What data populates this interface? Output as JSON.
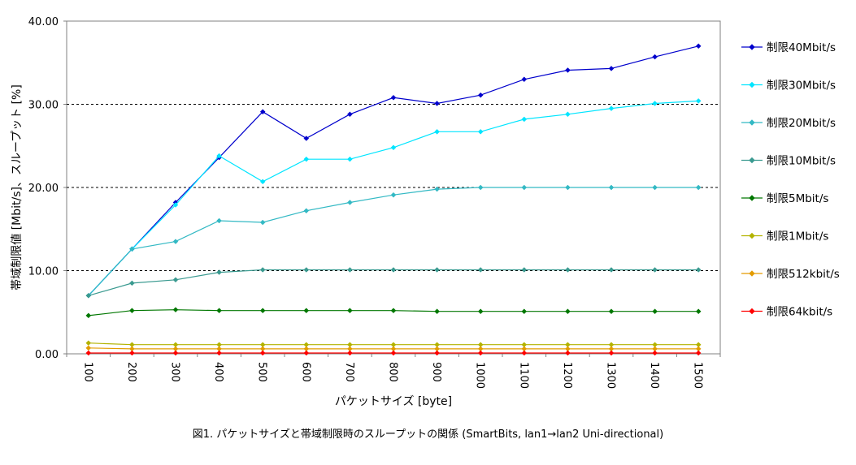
{
  "caption": "図1. パケットサイズと帯域制限時のスループットの関係 (SmartBits, lan1→lan2 Uni-directional)",
  "chart_data": {
    "type": "line",
    "title": "",
    "xlabel": "パケットサイズ [byte]",
    "ylabel": "帯域制限値 [Mbit/s]、スループット [%]",
    "x": [
      100,
      200,
      300,
      400,
      500,
      600,
      700,
      800,
      900,
      1000,
      1100,
      1200,
      1300,
      1400,
      1500
    ],
    "x_tick_labels": [
      "100",
      "200",
      "300",
      "400",
      "500",
      "600",
      "700",
      "800",
      "900",
      "1000",
      "1100",
      "1200",
      "1300",
      "1400",
      "1500"
    ],
    "ylim": [
      0,
      40
    ],
    "y_ticks": [
      0,
      10,
      20,
      30,
      40
    ],
    "y_tick_labels": [
      "0.00",
      "10.00",
      "20.00",
      "30.00",
      "40.00"
    ],
    "grid": "horizontal dashed at 10, 20, 30",
    "legend_position": "right",
    "series": [
      {
        "name": "制限40Mbit/s",
        "color": "#0000cc",
        "values": [
          7.0,
          12.6,
          18.2,
          23.6,
          29.1,
          25.9,
          28.8,
          30.8,
          30.1,
          31.1,
          33.0,
          34.1,
          34.3,
          35.7,
          37.0
        ]
      },
      {
        "name": "制限30Mbit/s",
        "color": "#00e5ff",
        "values": [
          7.0,
          12.6,
          17.9,
          23.8,
          20.7,
          23.4,
          23.4,
          24.8,
          26.7,
          26.7,
          28.2,
          28.8,
          29.5,
          30.1,
          30.4
        ]
      },
      {
        "name": "制限20Mbit/s",
        "color": "#33b9c4",
        "values": [
          7.0,
          12.6,
          13.5,
          16.0,
          15.8,
          17.2,
          18.2,
          19.1,
          19.8,
          20.0,
          20.0,
          20.0,
          20.0,
          20.0,
          20.0
        ]
      },
      {
        "name": "制限10Mbit/s",
        "color": "#3a9a90",
        "values": [
          7.0,
          8.5,
          8.9,
          9.8,
          10.1,
          10.1,
          10.1,
          10.1,
          10.1,
          10.1,
          10.1,
          10.1,
          10.1,
          10.1,
          10.1
        ]
      },
      {
        "name": "制限5Mbit/s",
        "color": "#007700",
        "values": [
          4.6,
          5.2,
          5.3,
          5.2,
          5.2,
          5.2,
          5.2,
          5.2,
          5.1,
          5.1,
          5.1,
          5.1,
          5.1,
          5.1,
          5.1
        ]
      },
      {
        "name": "制限1Mbit/s",
        "color": "#b3b300",
        "values": [
          1.3,
          1.1,
          1.1,
          1.1,
          1.1,
          1.1,
          1.1,
          1.1,
          1.1,
          1.1,
          1.1,
          1.1,
          1.1,
          1.1,
          1.1
        ]
      },
      {
        "name": "制限512kbit/s",
        "color": "#e39b00",
        "values": [
          0.7,
          0.6,
          0.6,
          0.6,
          0.6,
          0.6,
          0.6,
          0.6,
          0.6,
          0.6,
          0.6,
          0.6,
          0.6,
          0.6,
          0.6
        ]
      },
      {
        "name": "制限64kbit/s",
        "color": "#ff0000",
        "values": [
          0.1,
          0.1,
          0.1,
          0.1,
          0.1,
          0.1,
          0.1,
          0.1,
          0.1,
          0.1,
          0.1,
          0.1,
          0.1,
          0.1,
          0.1
        ]
      }
    ]
  }
}
